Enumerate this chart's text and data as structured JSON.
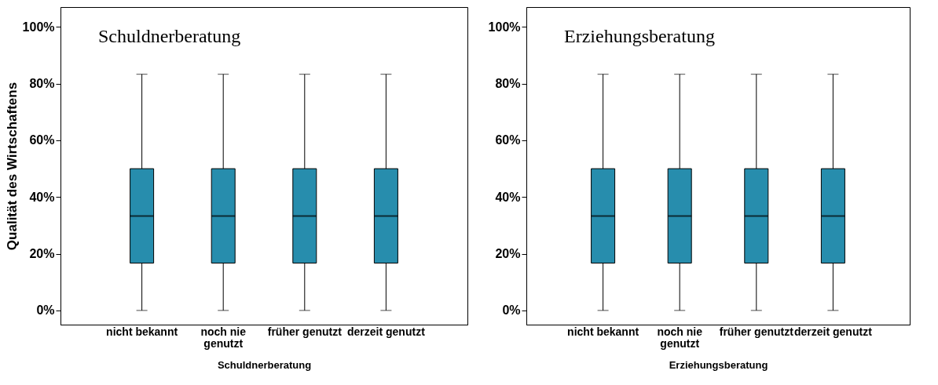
{
  "chart_data": [
    {
      "type": "box",
      "title": "Schuldnerberatung",
      "xlabel": "Schuldnerberatung",
      "ylabel": "Qualität des Wirtschaftens",
      "categories": [
        "nicht bekannt",
        "noch nie genutzt",
        "früher genutzt",
        "derzeit genutzt"
      ],
      "series": [
        {
          "color": "#278dad",
          "boxes": [
            {
              "low": 0,
              "q1": 16.7,
              "median": 33.3,
              "q3": 50,
              "high": 83.3
            },
            {
              "low": 0,
              "q1": 16.7,
              "median": 33.3,
              "q3": 50,
              "high": 83.3
            },
            {
              "low": 0,
              "q1": 16.7,
              "median": 33.3,
              "q3": 50,
              "high": 83.3
            },
            {
              "low": 0,
              "q1": 16.7,
              "median": 33.3,
              "q3": 50,
              "high": 83.3
            }
          ]
        }
      ],
      "ylim": [
        -5,
        107
      ],
      "yticks": [
        {
          "value": 0,
          "label": "0%"
        },
        {
          "value": 20,
          "label": "20%"
        },
        {
          "value": 40,
          "label": "40%"
        },
        {
          "value": 60,
          "label": "60%"
        },
        {
          "value": 80,
          "label": "80%"
        },
        {
          "value": 100,
          "label": "100%"
        }
      ],
      "grid": false
    },
    {
      "type": "box",
      "title": "Erziehungsberatung",
      "xlabel": "Erziehungsberatung",
      "categories": [
        "nicht bekannt",
        "noch nie genutzt",
        "früher genutzt",
        "derzeit genutzt"
      ],
      "series": [
        {
          "color": "#278dad",
          "boxes": [
            {
              "low": 0,
              "q1": 16.7,
              "median": 33.3,
              "q3": 50,
              "high": 83.3
            },
            {
              "low": 0,
              "q1": 16.7,
              "median": 33.3,
              "q3": 50,
              "high": 83.3
            },
            {
              "low": 0,
              "q1": 16.7,
              "median": 33.3,
              "q3": 50,
              "high": 83.3
            },
            {
              "low": 0,
              "q1": 16.7,
              "median": 33.3,
              "q3": 50,
              "high": 83.3
            }
          ]
        }
      ],
      "ylim": [
        -5,
        107
      ],
      "yticks": [
        {
          "value": 0,
          "label": "0%"
        },
        {
          "value": 20,
          "label": "20%"
        },
        {
          "value": 40,
          "label": "40%"
        },
        {
          "value": 60,
          "label": "60%"
        },
        {
          "value": 80,
          "label": "80%"
        },
        {
          "value": 100,
          "label": "100%"
        }
      ],
      "grid": false
    }
  ]
}
